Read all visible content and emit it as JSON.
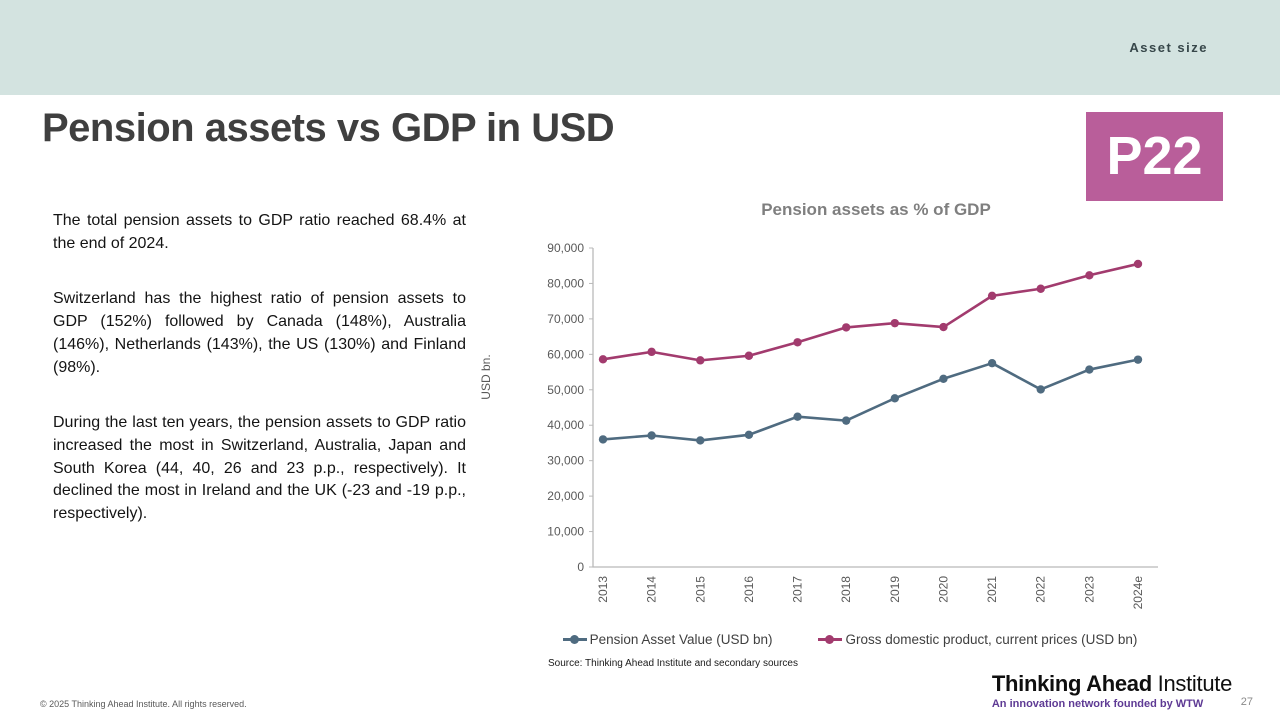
{
  "header": {
    "section_label": "Asset size"
  },
  "title": "Pension assets vs GDP in USD",
  "badge": "P22",
  "paragraphs": [
    "The total pension assets to GDP ratio reached 68.4% at the end of 2024.",
    "Switzerland has the highest ratio of pension assets to GDP (152%) followed by Canada (148%), Australia (146%), Netherlands (143%), the US (130%) and Finland (98%).",
    "During the last ten years, the pension assets to GDP ratio increased the most in Switzerland, Australia, Japan and South Korea (44, 40, 26 and 23 p.p., respectively). It declined the most in Ireland and the UK (-23 and -19 p.p., respectively)."
  ],
  "chart_data": {
    "type": "line",
    "title": "Pension assets as % of GDP",
    "ylabel": "USD bn.",
    "ylim": [
      0,
      90000
    ],
    "ytick_step": 10000,
    "grid": false,
    "legend_position": "bottom",
    "categories": [
      "2013",
      "2014",
      "2015",
      "2016",
      "2017",
      "2018",
      "2019",
      "2020",
      "2021",
      "2022",
      "2023",
      "2024e"
    ],
    "series": [
      {
        "name": "Pension Asset Value (USD bn)",
        "color": "#4f6b80",
        "values": [
          36000,
          37100,
          35700,
          37300,
          42400,
          41300,
          47600,
          53100,
          57500,
          50100,
          55700,
          58500
        ]
      },
      {
        "name": "Gross domestic product, current prices (USD bn)",
        "color": "#a23b6e",
        "values": [
          58600,
          60700,
          58300,
          59600,
          63400,
          67600,
          68800,
          67700,
          76500,
          78500,
          82300,
          85500
        ]
      }
    ],
    "axis_color": "#b9b9b9",
    "tick_text_color": "#595959"
  },
  "source": "Source: Thinking Ahead Institute and secondary sources",
  "footer": {
    "copyright": "© 2025 Thinking Ahead Institute. All rights reserved.",
    "logo_bold": "Thinking Ahead",
    "logo_regular": " Institute",
    "tagline": "An innovation network founded by WTW",
    "page_number": "27"
  }
}
